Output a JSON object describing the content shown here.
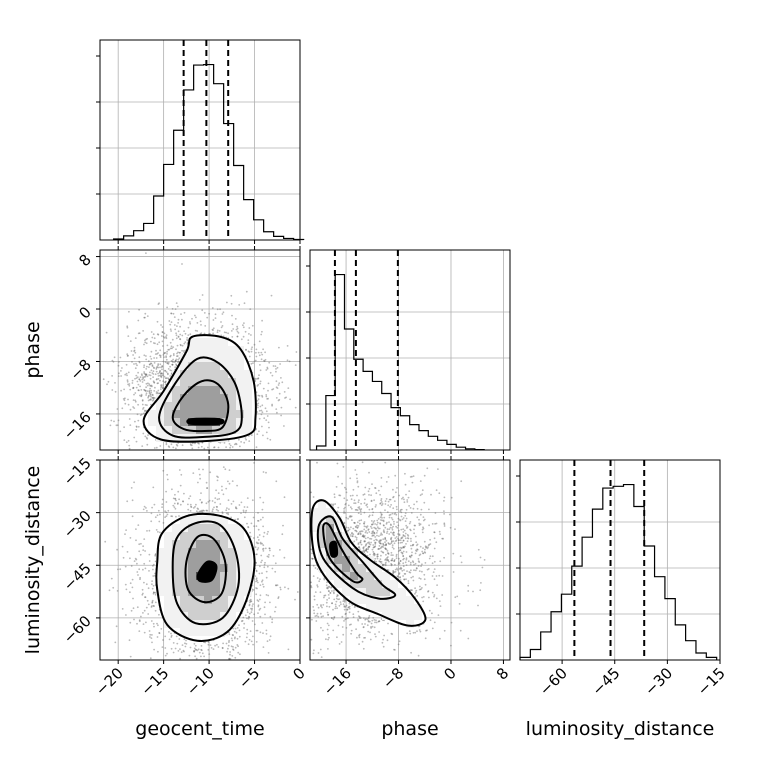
{
  "chart_data": {
    "type": "corner",
    "parameters": [
      "geocent_time",
      "phase",
      "luminosity_distance"
    ],
    "tick_labels": {
      "geocent_time": [
        "−20",
        "−15",
        "−10",
        "−5",
        "0"
      ],
      "phase": [
        "−16",
        "−8",
        "0",
        "8"
      ],
      "luminosity_distance": [
        "−60",
        "−45",
        "−30",
        "−15"
      ]
    },
    "ranges": {
      "geocent_time": [
        -22,
        0
      ],
      "phase": [
        -21.5,
        9
      ],
      "luminosity_distance": [
        -72,
        -15
      ]
    },
    "ticks": {
      "geocent_time": [
        -20,
        -15,
        -10,
        -5,
        0
      ],
      "phase": [
        -16,
        -8,
        0,
        8
      ],
      "luminosity_distance": [
        -60,
        -45,
        -30,
        -15
      ]
    },
    "quantiles": {
      "geocent_time": [
        -12.8,
        -10.3,
        -7.9
      ],
      "phase": [
        -17.7,
        -14.5,
        -8.1
      ],
      "luminosity_distance": [
        -56.5,
        -46.2,
        -36.6
      ]
    },
    "histograms": {
      "geocent_time": {
        "edges_start": -20.5,
        "bin_width": 1.1,
        "counts": [
          0.2,
          0.8,
          1.8,
          3.2,
          8.5,
          14.6,
          21.2,
          29.0,
          33.8,
          33.9,
          30.2,
          22.5,
          14.4,
          7.8,
          3.9,
          1.6,
          0.7,
          0.3,
          0.1
        ]
      },
      "phase": {
        "edges_start": -20.5,
        "bin_width": 1.42,
        "counts": [
          1.0,
          13.5,
          43.5,
          30.0,
          22.5,
          19.5,
          17.0,
          14.0,
          10.5,
          8.5,
          6.3,
          4.8,
          3.4,
          2.4,
          1.4,
          0.7,
          0.3,
          0.1
        ]
      },
      "luminosity_distance": {
        "edges_start": -72,
        "bin_width": 2.95,
        "counts": [
          0.3,
          1.2,
          3.2,
          5.5,
          7.5,
          10.7,
          14.0,
          17.2,
          19.6,
          19.8,
          20.0,
          17.5,
          13.0,
          9.5,
          7.0,
          4.0,
          2.2,
          0.8,
          0.3
        ]
      }
    },
    "pairs": [
      {
        "x": "geocent_time",
        "y": "phase",
        "center": [
          -10.3,
          -17.0
        ],
        "contours": [
          [
            [
              -12,
              -16.8
            ],
            [
              -8.8,
              -16.8
            ],
            [
              -8.8,
              -17.5
            ],
            [
              -12,
              -17.5
            ]
          ],
          [
            [
              -14,
              -16.5
            ],
            [
              -12.8,
              -13.2
            ],
            [
              -10.8,
              -11.0
            ],
            [
              -9,
              -11.5
            ],
            [
              -7.9,
              -14.5
            ],
            [
              -8.5,
              -18
            ],
            [
              -10.5,
              -18.6
            ],
            [
              -12.8,
              -18.3
            ]
          ],
          [
            [
              -15.5,
              -16.5
            ],
            [
              -13.8,
              -11.5
            ],
            [
              -11.3,
              -7.6
            ],
            [
              -9,
              -8.2
            ],
            [
              -7.1,
              -11.5
            ],
            [
              -6.4,
              -16.5
            ],
            [
              -7.2,
              -18.8
            ],
            [
              -10.5,
              -19.5
            ],
            [
              -14,
              -19.3
            ]
          ],
          [
            [
              -17.2,
              -17
            ],
            [
              -15,
              -12.5
            ],
            [
              -12.5,
              -6.5
            ],
            [
              -11.8,
              -4.2
            ],
            [
              -8.6,
              -4.3
            ],
            [
              -6.5,
              -6.2
            ],
            [
              -5.1,
              -11.0
            ],
            [
              -4.9,
              -16.6
            ],
            [
              -5.6,
              -19.1
            ],
            [
              -10,
              -20.1
            ],
            [
              -15.3,
              -19.9
            ]
          ]
        ]
      },
      {
        "x": "geocent_time",
        "y": "luminosity_distance",
        "center": [
          -10.3,
          -46.5
        ],
        "contours": [
          [
            [
              -11.2,
              -47.5
            ],
            [
              -10.2,
              -44
            ],
            [
              -9.2,
              -45.2
            ],
            [
              -9.7,
              -49.2
            ],
            [
              -11,
              -49.5
            ]
          ],
          [
            [
              -12.5,
              -44
            ],
            [
              -11.3,
              -37
            ],
            [
              -9.5,
              -37.5
            ],
            [
              -8.2,
              -44.5
            ],
            [
              -8.6,
              -53
            ],
            [
              -10.5,
              -55.5
            ],
            [
              -12.3,
              -52
            ]
          ],
          [
            [
              -14.0,
              -47
            ],
            [
              -13.6,
              -37.5
            ],
            [
              -11.5,
              -33
            ],
            [
              -8.8,
              -33.5
            ],
            [
              -7.1,
              -41
            ],
            [
              -6.8,
              -51
            ],
            [
              -8.5,
              -60
            ],
            [
              -11.5,
              -61.5
            ],
            [
              -13.5,
              -56
            ]
          ],
          [
            [
              -15.7,
              -44
            ],
            [
              -15.2,
              -36
            ],
            [
              -12.5,
              -31
            ],
            [
              -9.0,
              -30.8
            ],
            [
              -6.2,
              -34.5
            ],
            [
              -5.0,
              -43.5
            ],
            [
              -5.9,
              -55
            ],
            [
              -8.0,
              -64
            ],
            [
              -11.3,
              -66.5
            ],
            [
              -14.6,
              -62
            ],
            [
              -15.7,
              -52
            ]
          ]
        ]
      },
      {
        "x": "phase",
        "y": "luminosity_distance",
        "center": [
          -17.8,
          -40.5
        ],
        "contours": [
          [
            [
              -18.4,
              -39
            ],
            [
              -17.6,
              -38.5
            ],
            [
              -17.4,
              -42
            ],
            [
              -18.2,
              -42.3
            ]
          ],
          [
            [
              -19.5,
              -34.5
            ],
            [
              -18.6,
              -33.5
            ],
            [
              -16.8,
              -40
            ],
            [
              -14.5,
              -47
            ],
            [
              -13.5,
              -49
            ],
            [
              -15,
              -49.5
            ],
            [
              -18.5,
              -43
            ]
          ],
          [
            [
              -20.2,
              -34
            ],
            [
              -18.2,
              -31.2
            ],
            [
              -16.5,
              -37.5
            ],
            [
              -13.5,
              -44
            ],
            [
              -10.5,
              -50.5
            ],
            [
              -8.5,
              -53.5
            ],
            [
              -11,
              -54.5
            ],
            [
              -15,
              -51.5
            ],
            [
              -19.5,
              -43
            ]
          ],
          [
            [
              -21.2,
              -30
            ],
            [
              -19.5,
              -26.5
            ],
            [
              -17.0,
              -31.5
            ],
            [
              -15.2,
              -38.5
            ],
            [
              -12.3,
              -43.5
            ],
            [
              -8.5,
              -48.5
            ],
            [
              -5.5,
              -54.5
            ],
            [
              -3.9,
              -60.5
            ],
            [
              -6.5,
              -62.2
            ],
            [
              -11,
              -59
            ],
            [
              -16,
              -54.5
            ],
            [
              -20.5,
              -44
            ]
          ]
        ]
      }
    ]
  }
}
